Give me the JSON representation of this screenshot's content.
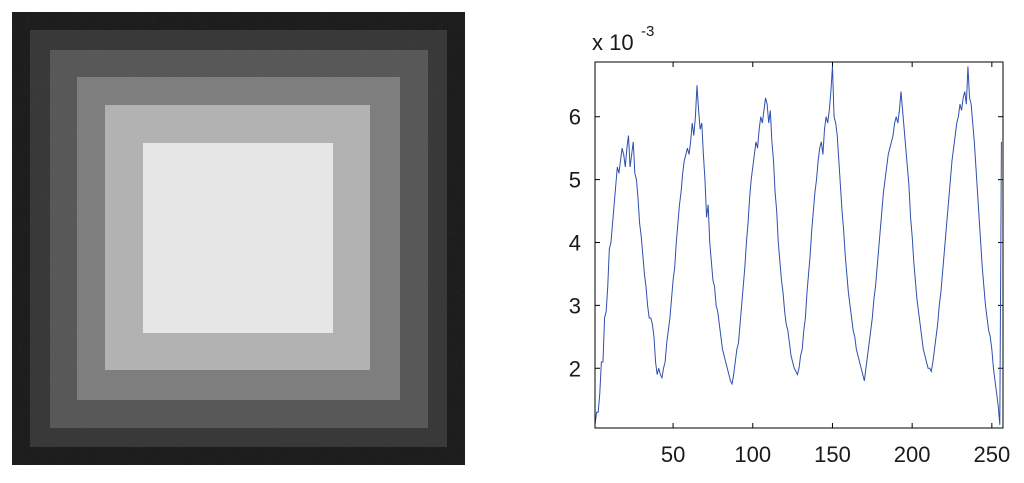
{
  "chart_data": {
    "type": "line",
    "y_exponent_label": "x 10",
    "y_exponent": "-3",
    "xlim": [
      1,
      257
    ],
    "xticks": [
      50,
      100,
      150,
      200,
      250
    ],
    "ylim": [
      1.05,
      6.87
    ],
    "yticks": [
      2,
      3,
      4,
      5,
      6
    ],
    "series": [
      {
        "color": "#2f4fb0",
        "x": [
          1,
          2,
          3,
          4,
          5,
          6,
          7,
          8,
          9,
          10,
          11,
          12,
          13,
          14,
          15,
          16,
          17,
          18,
          19,
          20,
          21,
          22,
          23,
          24,
          25,
          26,
          27,
          28,
          29,
          30,
          31,
          32,
          33,
          34,
          35,
          36,
          37,
          38,
          39,
          40,
          41,
          42,
          43,
          44,
          45,
          46,
          47,
          48,
          49,
          50,
          51,
          52,
          53,
          54,
          55,
          56,
          57,
          58,
          59,
          60,
          61,
          62,
          63,
          64,
          65,
          66,
          67,
          68,
          69,
          70,
          71,
          72,
          73,
          74,
          75,
          76,
          77,
          78,
          79,
          80,
          81,
          82,
          83,
          84,
          85,
          86,
          87,
          88,
          89,
          90,
          91,
          92,
          93,
          94,
          95,
          96,
          97,
          98,
          99,
          100,
          101,
          102,
          103,
          104,
          105,
          106,
          107,
          108,
          109,
          110,
          111,
          112,
          113,
          114,
          115,
          116,
          117,
          118,
          119,
          120,
          121,
          122,
          123,
          124,
          125,
          126,
          127,
          128,
          129,
          130,
          131,
          132,
          133,
          134,
          135,
          136,
          137,
          138,
          139,
          140,
          141,
          142,
          143,
          144,
          145,
          146,
          147,
          148,
          149,
          150,
          151,
          152,
          153,
          154,
          155,
          156,
          157,
          158,
          159,
          160,
          161,
          162,
          163,
          164,
          165,
          166,
          167,
          168,
          169,
          170,
          171,
          172,
          173,
          174,
          175,
          176,
          177,
          178,
          179,
          180,
          181,
          182,
          183,
          184,
          185,
          186,
          187,
          188,
          189,
          190,
          191,
          192,
          193,
          194,
          195,
          196,
          197,
          198,
          199,
          200,
          201,
          202,
          203,
          204,
          205,
          206,
          207,
          208,
          209,
          210,
          211,
          212,
          213,
          214,
          215,
          216,
          217,
          218,
          219,
          220,
          221,
          222,
          223,
          224,
          225,
          226,
          227,
          228,
          229,
          230,
          231,
          232,
          233,
          234,
          235,
          236,
          237,
          238,
          239,
          240,
          241,
          242,
          243,
          244,
          245,
          246,
          247,
          248,
          249,
          250,
          251,
          252,
          253,
          254,
          255,
          256
        ],
        "values": [
          1.1,
          1.3,
          1.3,
          1.6,
          2.1,
          2.1,
          2.8,
          2.9,
          3.3,
          3.9,
          4.0,
          4.3,
          4.6,
          4.9,
          5.2,
          5.1,
          5.3,
          5.5,
          5.4,
          5.2,
          5.5,
          5.7,
          5.2,
          5.4,
          5.6,
          5.1,
          5.0,
          4.7,
          4.3,
          4.1,
          3.8,
          3.5,
          3.3,
          3.0,
          2.8,
          2.8,
          2.7,
          2.5,
          2.1,
          1.9,
          2.0,
          1.9,
          1.85,
          2.0,
          2.1,
          2.4,
          2.6,
          2.8,
          3.1,
          3.4,
          3.6,
          4.0,
          4.3,
          4.6,
          4.8,
          5.1,
          5.3,
          5.4,
          5.5,
          5.4,
          5.6,
          5.9,
          5.7,
          6.0,
          6.5,
          6.1,
          5.8,
          5.9,
          5.4,
          5.0,
          4.4,
          4.6,
          4.0,
          3.7,
          3.4,
          3.3,
          3.0,
          2.9,
          2.7,
          2.5,
          2.3,
          2.2,
          2.1,
          2.0,
          1.9,
          1.8,
          1.75,
          1.9,
          2.1,
          2.3,
          2.4,
          2.7,
          3.0,
          3.3,
          3.6,
          4.0,
          4.3,
          4.7,
          5.0,
          5.2,
          5.4,
          5.6,
          5.5,
          5.8,
          6.0,
          5.9,
          6.1,
          6.3,
          6.2,
          5.9,
          6.1,
          5.6,
          5.3,
          4.8,
          4.5,
          4.0,
          3.7,
          3.4,
          3.2,
          2.9,
          2.7,
          2.6,
          2.4,
          2.2,
          2.1,
          2.0,
          1.95,
          1.9,
          2.0,
          2.2,
          2.3,
          2.6,
          2.8,
          3.2,
          3.5,
          3.8,
          4.2,
          4.5,
          4.8,
          5.0,
          5.3,
          5.5,
          5.6,
          5.4,
          5.8,
          6.0,
          5.9,
          6.1,
          6.4,
          6.8,
          6.0,
          5.9,
          5.7,
          5.3,
          4.9,
          4.5,
          4.2,
          3.8,
          3.5,
          3.2,
          3.0,
          2.8,
          2.6,
          2.5,
          2.3,
          2.2,
          2.1,
          2.0,
          1.9,
          1.8,
          2.0,
          2.2,
          2.4,
          2.6,
          2.8,
          3.1,
          3.3,
          3.6,
          3.9,
          4.2,
          4.5,
          4.8,
          5.0,
          5.2,
          5.4,
          5.5,
          5.6,
          5.7,
          5.9,
          6.0,
          5.9,
          6.1,
          6.4,
          6.1,
          5.8,
          5.5,
          5.2,
          4.9,
          4.4,
          4.1,
          3.7,
          3.4,
          3.1,
          2.9,
          2.7,
          2.5,
          2.3,
          2.2,
          2.1,
          2.0,
          2.0,
          1.95,
          2.1,
          2.3,
          2.5,
          2.7,
          3.0,
          3.2,
          3.5,
          3.8,
          4.1,
          4.4,
          4.7,
          5.0,
          5.3,
          5.5,
          5.7,
          5.9,
          6.0,
          6.2,
          6.1,
          6.3,
          6.4,
          6.2,
          6.8,
          6.3,
          6.2,
          5.9,
          5.6,
          5.2,
          4.8,
          4.4,
          4.0,
          3.6,
          3.3,
          3.0,
          2.8,
          2.6,
          2.5,
          2.3,
          2.0,
          1.8,
          1.6,
          1.4,
          1.1,
          5.6
        ]
      }
    ]
  }
}
